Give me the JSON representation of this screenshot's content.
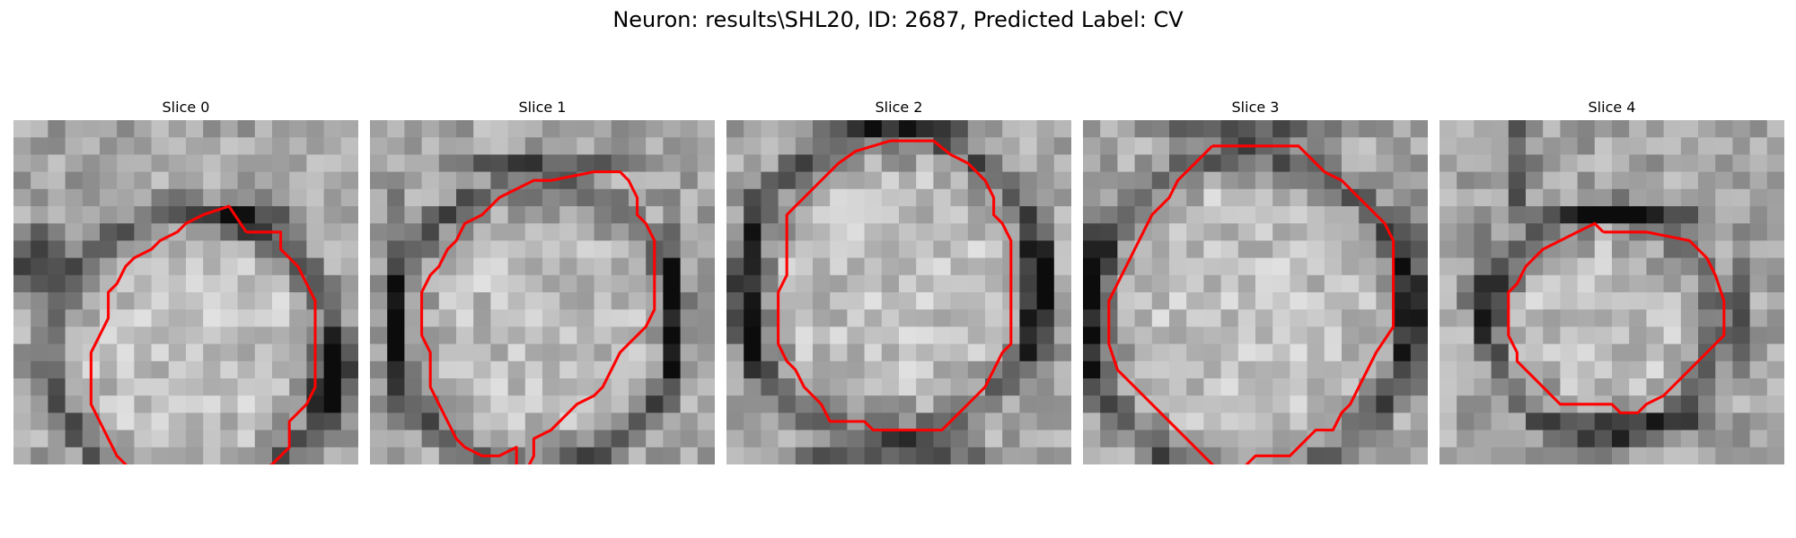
{
  "figure": {
    "title": "Neuron: results\\SHL20, ID: 2687, Predicted Label: CV"
  },
  "colors": {
    "contour": "#ff0000",
    "background": "#ffffff"
  },
  "panels": [
    {
      "title": "Slice 0",
      "contour": [
        [
          13.5,
          6.5
        ],
        [
          15.5,
          6.5
        ],
        [
          15.5,
          7.5
        ],
        [
          16.5,
          8.5
        ],
        [
          17.5,
          10.5
        ],
        [
          17.5,
          15.5
        ],
        [
          17,
          16.5
        ],
        [
          16,
          17.5
        ],
        [
          16,
          19
        ],
        [
          15.5,
          19.5
        ],
        [
          15,
          20
        ],
        [
          14,
          20.5
        ],
        [
          12.5,
          21
        ],
        [
          11,
          21.5
        ],
        [
          10,
          22
        ],
        [
          9,
          21.5
        ],
        [
          8,
          21
        ],
        [
          7,
          20.5
        ],
        [
          6,
          19.5
        ],
        [
          5.5,
          18.5
        ],
        [
          5,
          17.5
        ],
        [
          4.5,
          16.5
        ],
        [
          4.5,
          15
        ],
        [
          4.5,
          13.5
        ],
        [
          5,
          12.5
        ],
        [
          5.5,
          11.5
        ],
        [
          5.5,
          10
        ],
        [
          6,
          9.5
        ],
        [
          6.5,
          8.5
        ],
        [
          7,
          8
        ],
        [
          8,
          7.5
        ],
        [
          8.5,
          7
        ],
        [
          9.5,
          6.5
        ],
        [
          10,
          6
        ],
        [
          11,
          5.5
        ],
        [
          12.5,
          5
        ],
        [
          13.5,
          6.5
        ]
      ],
      "dark": [
        [
          13.5,
          5.5,
          3.0,
          1.4
        ],
        [
          18.5,
          15,
          1.8,
          3.8
        ],
        [
          13,
          22.5,
          5.0,
          1.2
        ],
        [
          1.5,
          8,
          2.5,
          2.5
        ]
      ]
    },
    {
      "title": "Slice 1",
      "contour": [
        [
          10.5,
          3.5
        ],
        [
          13,
          3
        ],
        [
          14.5,
          3
        ],
        [
          15,
          3.5
        ],
        [
          15.5,
          4.5
        ],
        [
          15.5,
          5.5
        ],
        [
          16,
          6
        ],
        [
          16.5,
          7
        ],
        [
          16.5,
          11
        ],
        [
          16,
          12
        ],
        [
          15.5,
          12.5
        ],
        [
          15,
          13
        ],
        [
          14.5,
          13.5
        ],
        [
          14,
          14.5
        ],
        [
          13.5,
          15.5
        ],
        [
          13,
          16
        ],
        [
          12,
          16.5
        ],
        [
          11.5,
          17
        ],
        [
          11,
          17.5
        ],
        [
          10.5,
          18
        ],
        [
          9.5,
          18.5
        ],
        [
          9.5,
          19.5
        ],
        [
          9,
          20.5
        ],
        [
          8.5,
          20.5
        ],
        [
          8.5,
          19
        ],
        [
          7.5,
          19.5
        ],
        [
          7,
          19.5
        ],
        [
          6.5,
          19.5
        ],
        [
          5.5,
          19
        ],
        [
          5,
          18.5
        ],
        [
          4.5,
          17.5
        ],
        [
          4,
          16.5
        ],
        [
          3.5,
          15.5
        ],
        [
          3.5,
          13.5
        ],
        [
          3,
          12.5
        ],
        [
          3,
          10
        ],
        [
          3.5,
          9
        ],
        [
          4,
          8.5
        ],
        [
          4.5,
          7.5
        ],
        [
          5,
          7
        ],
        [
          5.5,
          6
        ],
        [
          6.5,
          5.5
        ],
        [
          7.5,
          4.5
        ],
        [
          8.5,
          4
        ],
        [
          9.5,
          3.5
        ],
        [
          10.5,
          3.5
        ]
      ],
      "dark": [
        [
          10,
          2.5,
          7.5,
          1.0
        ],
        [
          17.5,
          11,
          1.0,
          7.0
        ],
        [
          10,
          20.5,
          6.0,
          1.0
        ],
        [
          1.5,
          11,
          1.0,
          7.5
        ]
      ]
    },
    {
      "title": "Slice 2",
      "contour": [
        [
          9.5,
          1.2
        ],
        [
          12,
          1.2
        ],
        [
          13,
          2
        ],
        [
          14,
          2.5
        ],
        [
          15,
          3.5
        ],
        [
          15.5,
          4.5
        ],
        [
          15.5,
          5.5
        ],
        [
          16,
          6
        ],
        [
          16.5,
          7
        ],
        [
          16.5,
          13
        ],
        [
          16,
          13.5
        ],
        [
          15,
          15.5
        ],
        [
          14,
          16.5
        ],
        [
          13,
          17.5
        ],
        [
          12.5,
          18
        ],
        [
          8.5,
          18
        ],
        [
          8,
          17.5
        ],
        [
          6,
          17.5
        ],
        [
          5.5,
          16.5
        ],
        [
          5,
          16
        ],
        [
          4.5,
          15.5
        ],
        [
          4,
          14.5
        ],
        [
          3.5,
          14
        ],
        [
          3,
          13
        ],
        [
          3,
          10
        ],
        [
          3.5,
          9
        ],
        [
          3.5,
          5.5
        ],
        [
          4.5,
          4.5
        ],
        [
          5.5,
          3.5
        ],
        [
          6.5,
          2.5
        ],
        [
          7.5,
          1.8
        ],
        [
          9.5,
          1.2
        ]
      ],
      "dark": [
        [
          10,
          19.5,
          7.5,
          1.2
        ],
        [
          18,
          10,
          1.2,
          7.0
        ],
        [
          1.5,
          10,
          1.2,
          7.5
        ],
        [
          10,
          0.2,
          7.5,
          0.8
        ]
      ]
    },
    {
      "title": "Slice 3",
      "contour": [
        [
          7.5,
          1.5
        ],
        [
          12.5,
          1.5
        ],
        [
          13.5,
          2.5
        ],
        [
          14,
          3
        ],
        [
          15,
          3.5
        ],
        [
          16,
          4.5
        ],
        [
          17.5,
          6
        ],
        [
          18,
          7
        ],
        [
          18,
          12
        ],
        [
          17,
          13.5
        ],
        [
          16.5,
          14.5
        ],
        [
          16,
          15.5
        ],
        [
          15.5,
          16.5
        ],
        [
          15,
          17
        ],
        [
          14.5,
          18
        ],
        [
          13.5,
          18
        ],
        [
          13,
          18.5
        ],
        [
          12,
          19.5
        ],
        [
          11,
          19.5
        ],
        [
          10,
          19.5
        ],
        [
          9,
          20.5
        ],
        [
          8,
          20.5
        ],
        [
          7,
          19.5
        ],
        [
          6,
          18.5
        ],
        [
          5,
          17.5
        ],
        [
          4,
          16.5
        ],
        [
          3,
          15.5
        ],
        [
          2,
          14.5
        ],
        [
          1.5,
          13
        ],
        [
          1.5,
          10.5
        ],
        [
          2,
          9.5
        ],
        [
          2.5,
          8.5
        ],
        [
          3,
          7.5
        ],
        [
          3.5,
          6.5
        ],
        [
          4,
          5.5
        ],
        [
          5,
          4.5
        ],
        [
          5.5,
          3.5
        ],
        [
          6.5,
          2.5
        ],
        [
          7.5,
          1.5
        ]
      ],
      "dark": [
        [
          10,
          0.7,
          7.5,
          1.0
        ],
        [
          19,
          10,
          1.0,
          7.5
        ],
        [
          11,
          21,
          7.5,
          1.0
        ],
        [
          0.8,
          10,
          1.2,
          7.5
        ]
      ]
    },
    {
      "title": "Slice 4",
      "contour": [
        [
          9.5,
          6.5
        ],
        [
          12,
          6.5
        ],
        [
          14.5,
          7
        ],
        [
          15.5,
          8
        ],
        [
          16,
          9
        ],
        [
          16.5,
          10.5
        ],
        [
          16.5,
          12.5
        ],
        [
          16,
          13
        ],
        [
          15,
          14
        ],
        [
          14.5,
          14.5
        ],
        [
          14,
          15
        ],
        [
          13.5,
          15.5
        ],
        [
          13,
          16
        ],
        [
          12,
          16.5
        ],
        [
          11.5,
          17
        ],
        [
          10.5,
          17
        ],
        [
          10,
          16.5
        ],
        [
          8.5,
          16.5
        ],
        [
          8,
          16.5
        ],
        [
          7,
          16.5
        ],
        [
          6.5,
          16
        ],
        [
          5.5,
          15
        ],
        [
          5,
          14.5
        ],
        [
          4.5,
          14
        ],
        [
          4.5,
          13.5
        ],
        [
          4,
          12.5
        ],
        [
          4,
          11
        ],
        [
          4,
          10
        ],
        [
          4.5,
          9.5
        ],
        [
          5,
          8.5
        ],
        [
          5.5,
          8
        ],
        [
          6,
          7.5
        ],
        [
          7,
          7
        ],
        [
          8,
          6.5
        ],
        [
          9,
          6
        ],
        [
          9.5,
          6.5
        ]
      ],
      "dark": [
        [
          4.5,
          2,
          1.2,
          5.0
        ],
        [
          2.5,
          10,
          1.2,
          4.0
        ],
        [
          11,
          5.5,
          6.0,
          0.8
        ],
        [
          17.5,
          11,
          0.9,
          5.0
        ],
        [
          11,
          17.8,
          6.5,
          0.8
        ]
      ]
    }
  ]
}
